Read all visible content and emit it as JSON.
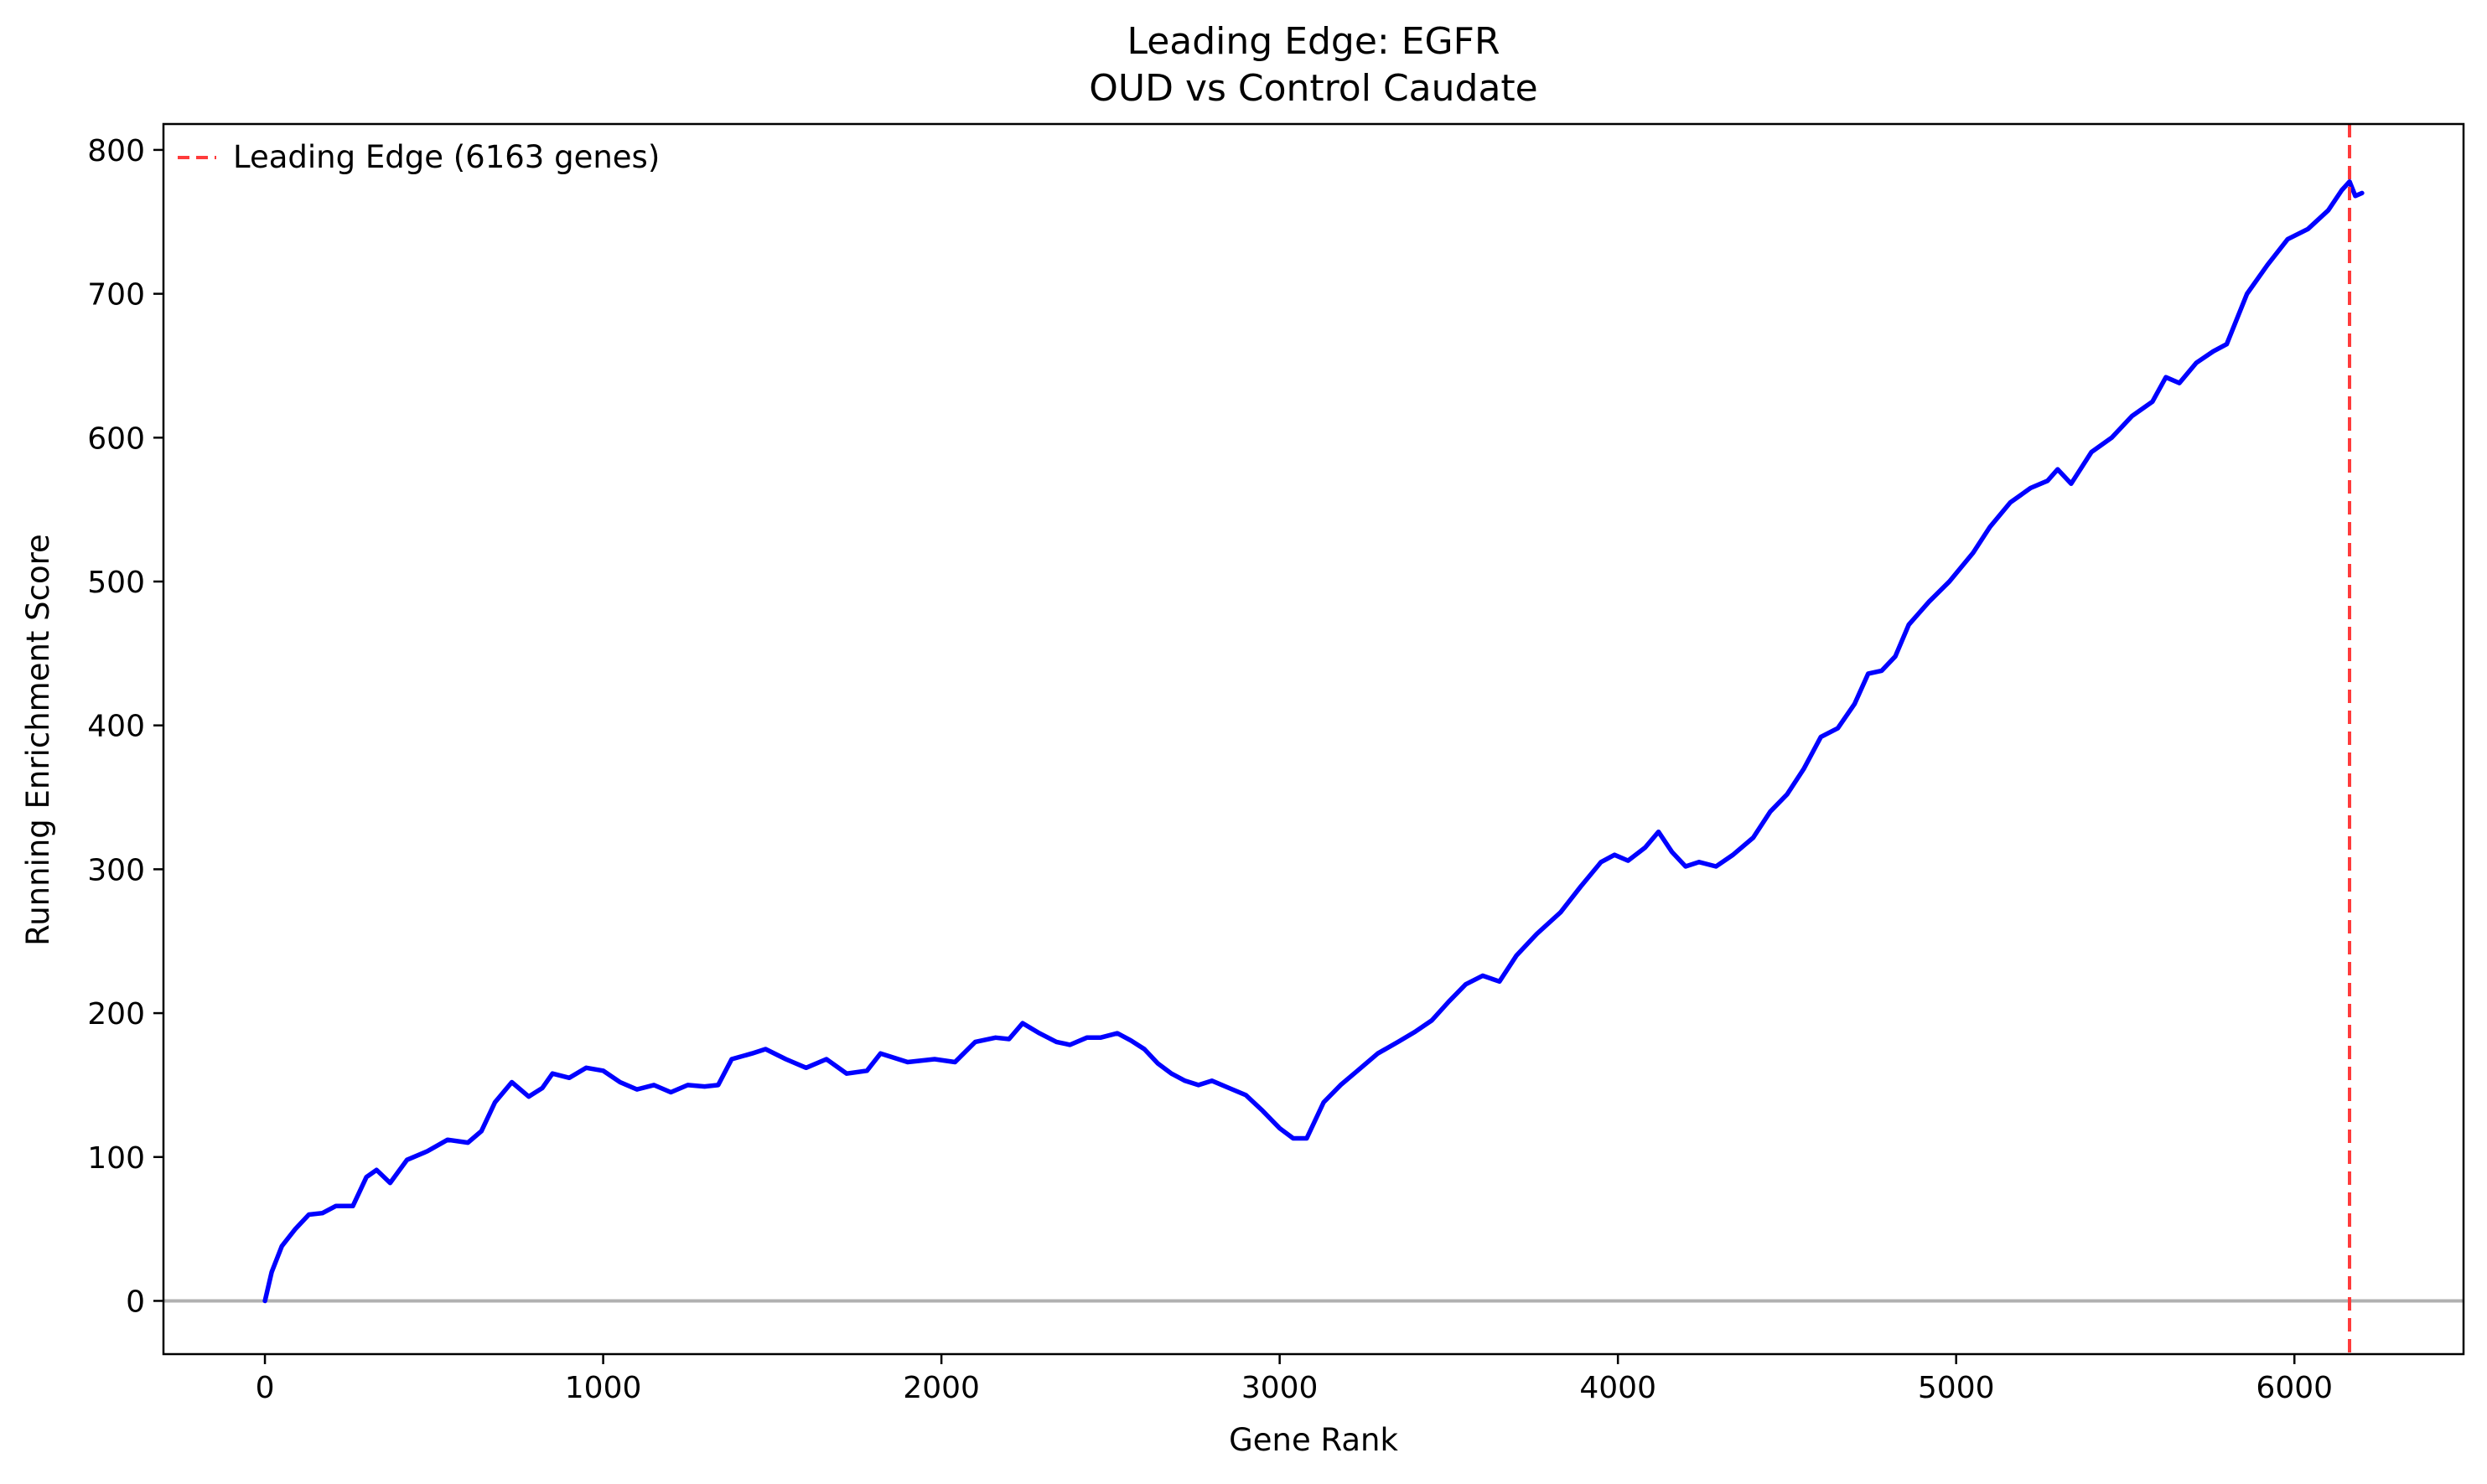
{
  "chart_data": {
    "type": "line",
    "title": "Leading Edge: EGFR",
    "subtitle": "OUD vs Control Caudate",
    "xlabel": "Gene Rank",
    "ylabel": "Running Enrichment Score",
    "xlim": [
      -300,
      6500
    ],
    "ylim": [
      -37,
      818
    ],
    "x_ticks": [
      0,
      1000,
      2000,
      3000,
      4000,
      5000,
      6000
    ],
    "y_ticks": [
      0,
      100,
      200,
      300,
      400,
      500,
      600,
      700,
      800
    ],
    "legend_position": "top-left",
    "colors": {
      "series": "#0000ff",
      "leading_edge": "#ff3b3b",
      "baseline": "#b0b0b0"
    },
    "series": [
      {
        "points": [
          [
            0,
            0
          ],
          [
            20,
            20
          ],
          [
            50,
            38
          ],
          [
            90,
            50
          ],
          [
            130,
            60
          ],
          [
            170,
            61
          ],
          [
            210,
            66
          ],
          [
            260,
            66
          ],
          [
            300,
            86
          ],
          [
            330,
            91
          ],
          [
            370,
            82
          ],
          [
            420,
            98
          ],
          [
            480,
            104
          ],
          [
            540,
            112
          ],
          [
            600,
            110
          ],
          [
            640,
            118
          ],
          [
            680,
            138
          ],
          [
            730,
            152
          ],
          [
            780,
            142
          ],
          [
            820,
            148
          ],
          [
            850,
            158
          ],
          [
            900,
            155
          ],
          [
            950,
            162
          ],
          [
            1000,
            160
          ],
          [
            1050,
            152
          ],
          [
            1100,
            147
          ],
          [
            1150,
            150
          ],
          [
            1200,
            145
          ],
          [
            1250,
            150
          ],
          [
            1300,
            149
          ],
          [
            1340,
            150
          ],
          [
            1380,
            168
          ],
          [
            1440,
            172
          ],
          [
            1480,
            175
          ],
          [
            1540,
            168
          ],
          [
            1600,
            162
          ],
          [
            1660,
            168
          ],
          [
            1720,
            158
          ],
          [
            1780,
            160
          ],
          [
            1820,
            172
          ],
          [
            1900,
            166
          ],
          [
            1980,
            168
          ],
          [
            2040,
            166
          ],
          [
            2100,
            180
          ],
          [
            2160,
            183
          ],
          [
            2200,
            182
          ],
          [
            2240,
            193
          ],
          [
            2290,
            186
          ],
          [
            2340,
            180
          ],
          [
            2380,
            178
          ],
          [
            2430,
            183
          ],
          [
            2470,
            183
          ],
          [
            2520,
            186
          ],
          [
            2560,
            181
          ],
          [
            2600,
            175
          ],
          [
            2640,
            165
          ],
          [
            2680,
            158
          ],
          [
            2720,
            153
          ],
          [
            2760,
            150
          ],
          [
            2800,
            153
          ],
          [
            2850,
            148
          ],
          [
            2900,
            143
          ],
          [
            2950,
            132
          ],
          [
            3000,
            120
          ],
          [
            3040,
            113
          ],
          [
            3080,
            113
          ],
          [
            3130,
            138
          ],
          [
            3180,
            150
          ],
          [
            3230,
            160
          ],
          [
            3290,
            172
          ],
          [
            3350,
            180
          ],
          [
            3400,
            187
          ],
          [
            3450,
            195
          ],
          [
            3500,
            208
          ],
          [
            3550,
            220
          ],
          [
            3600,
            226
          ],
          [
            3650,
            222
          ],
          [
            3700,
            240
          ],
          [
            3760,
            255
          ],
          [
            3830,
            270
          ],
          [
            3890,
            288
          ],
          [
            3950,
            305
          ],
          [
            3990,
            310
          ],
          [
            4030,
            306
          ],
          [
            4080,
            315
          ],
          [
            4120,
            326
          ],
          [
            4160,
            312
          ],
          [
            4200,
            302
          ],
          [
            4240,
            305
          ],
          [
            4290,
            302
          ],
          [
            4340,
            310
          ],
          [
            4400,
            322
          ],
          [
            4450,
            340
          ],
          [
            4500,
            352
          ],
          [
            4550,
            370
          ],
          [
            4600,
            392
          ],
          [
            4650,
            398
          ],
          [
            4700,
            415
          ],
          [
            4740,
            436
          ],
          [
            4780,
            438
          ],
          [
            4820,
            448
          ],
          [
            4860,
            470
          ],
          [
            4920,
            486
          ],
          [
            4980,
            500
          ],
          [
            5050,
            520
          ],
          [
            5100,
            538
          ],
          [
            5160,
            555
          ],
          [
            5220,
            565
          ],
          [
            5270,
            570
          ],
          [
            5300,
            578
          ],
          [
            5340,
            568
          ],
          [
            5400,
            590
          ],
          [
            5460,
            600
          ],
          [
            5520,
            615
          ],
          [
            5580,
            625
          ],
          [
            5620,
            642
          ],
          [
            5660,
            638
          ],
          [
            5710,
            652
          ],
          [
            5760,
            660
          ],
          [
            5800,
            665
          ],
          [
            5860,
            700
          ],
          [
            5920,
            720
          ],
          [
            5980,
            738
          ],
          [
            6040,
            745
          ],
          [
            6100,
            758
          ],
          [
            6140,
            772
          ],
          [
            6163,
            778
          ],
          [
            6180,
            768
          ],
          [
            6200,
            770
          ]
        ]
      }
    ],
    "leading_edge": {
      "label": "Leading Edge (6163 genes)",
      "x": 6163
    },
    "baseline_y": 0
  }
}
